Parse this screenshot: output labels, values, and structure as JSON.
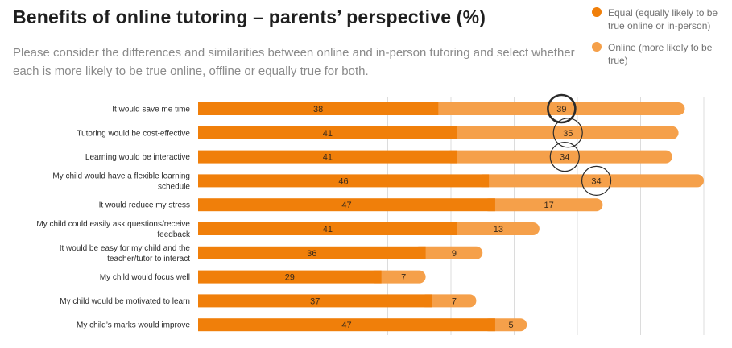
{
  "title": "Benefits of online tutoring – parents’ perspective (%)",
  "subtitle": "Please consider the differences and similarities between online and in-person tutoring and select whether each is more likely to be true online, offline or equally true for both.",
  "colors": {
    "equal": "#f07f0a",
    "online": "#f5a04a",
    "gridline": "#dcdcdc",
    "circle": "#2b2b2b"
  },
  "legend": [
    {
      "label": "Equal (equally likely to be true online or in-person)",
      "series": "Equal"
    },
    {
      "label": "Online (more likely to be true)",
      "series": "Online"
    }
  ],
  "chart_data": {
    "type": "bar",
    "orientation": "horizontal",
    "stacked": true,
    "categories": [
      "It would save me time",
      "Tutoring would be cost-effective",
      "Learning would be interactive",
      "My child would have a flexible learning schedule",
      "It would reduce my stress",
      "My child could easily ask questions/receive feedback",
      "It would be easy for my child and the teacher/tutor to interact",
      "My child would focus well",
      "My child would be motivated to learn",
      "My child’s marks would improve"
    ],
    "category_lines": [
      [
        "It would save me time"
      ],
      [
        "Tutoring would be cost-effective"
      ],
      [
        "Learning would be interactive"
      ],
      [
        "My child would have a flexible learning",
        "schedule"
      ],
      [
        "It would reduce my stress"
      ],
      [
        "My child could easily ask questions/receive",
        "feedback"
      ],
      [
        "It would be easy for my child and the",
        "teacher/tutor to interact"
      ],
      [
        "My child would focus well"
      ],
      [
        "My child would be motivated to learn"
      ],
      [
        "My child’s marks would improve"
      ]
    ],
    "series": [
      {
        "name": "Equal",
        "values": [
          38,
          41,
          41,
          46,
          47,
          41,
          36,
          29,
          37,
          47
        ]
      },
      {
        "name": "Online",
        "values": [
          39,
          35,
          34,
          34,
          17,
          13,
          9,
          7,
          7,
          5
        ]
      }
    ],
    "highlighted_online": [
      0,
      1,
      2,
      3
    ],
    "emphasized_online": [
      0
    ],
    "xlim": [
      0,
      80
    ],
    "grid": true
  }
}
